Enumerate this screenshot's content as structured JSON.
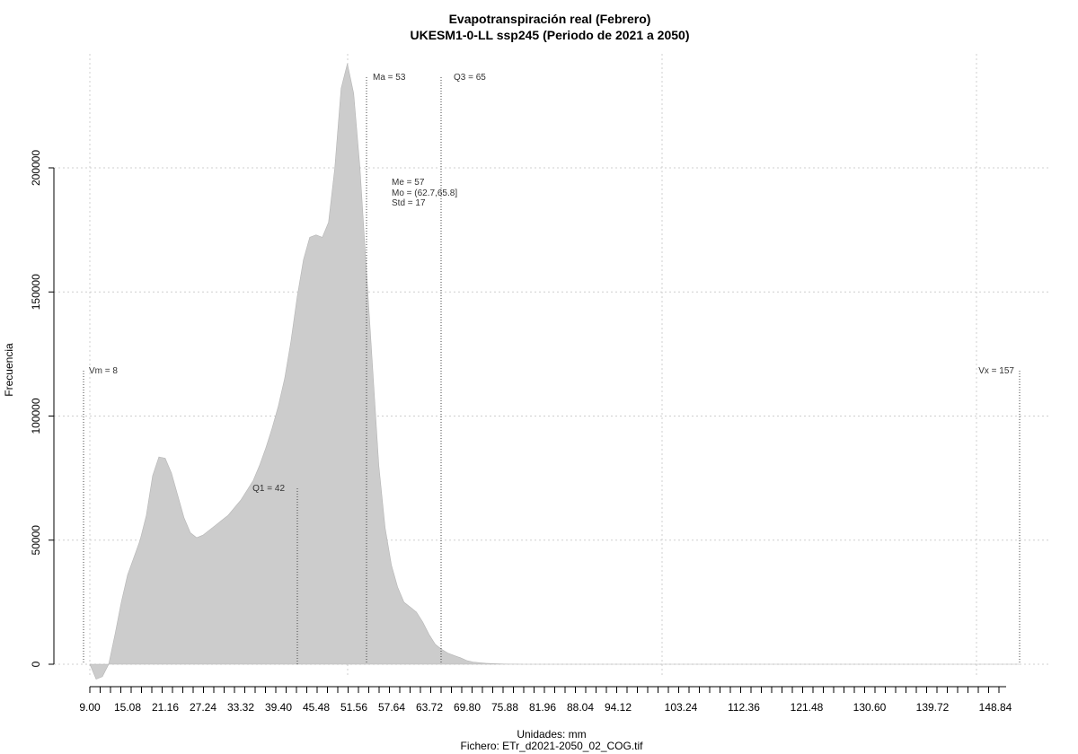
{
  "chart_data": {
    "type": "area",
    "title": "Evapotranspiración real (Febrero)",
    "subtitle": "UKESM1-0-LL ssp245 (Periodo de 2021 a 2050)",
    "xlabel": "Unidades: mm",
    "ylabel": "Frecuencia",
    "footer": "Fichero: ETr_d2021-2050_02_COG.tif",
    "xlim": [
      9,
      157
    ],
    "ylim": [
      0,
      240000
    ],
    "grid": true,
    "fill_color": "#cccccc",
    "x_ticks": [
      "9.00",
      "15.08",
      "21.16",
      "27.24",
      "33.32",
      "39.40",
      "45.48",
      "51.56",
      "57.64",
      "63.72",
      "69.80",
      "75.88",
      "81.96",
      "88.04",
      "94.12",
      "103.24",
      "112.36",
      "121.48",
      "130.60",
      "139.72",
      "148.84"
    ],
    "y_ticks": [
      "0",
      "50000",
      "100000",
      "150000",
      "200000"
    ],
    "series": [
      {
        "x": [
          9,
          10,
          11,
          12,
          13,
          14,
          15,
          16,
          17,
          18,
          19,
          20,
          21,
          22,
          23,
          24,
          25,
          26,
          27,
          28,
          29,
          30,
          31,
          32,
          33,
          34,
          35,
          36,
          37,
          38,
          39,
          40,
          41,
          42,
          43,
          44,
          45,
          46,
          47,
          48,
          49,
          50,
          51,
          52,
          53,
          54,
          55,
          56,
          57,
          58,
          59,
          60,
          61,
          62,
          63,
          64,
          65,
          66,
          67,
          68,
          69,
          70,
          71,
          72,
          73,
          74,
          75,
          76,
          77,
          78,
          79,
          80,
          81,
          82,
          83,
          84,
          85,
          86,
          87,
          88,
          90,
          92,
          94,
          96,
          98,
          100,
          102,
          104,
          106,
          110,
          115,
          120,
          130,
          140,
          150,
          157
        ],
        "y": [
          0,
          -6000,
          -5000,
          0,
          12000,
          25000,
          36000,
          43000,
          50000,
          60000,
          76000,
          83500,
          83000,
          77000,
          68000,
          59000,
          53000,
          51000,
          52000,
          54000,
          56000,
          58000,
          60000,
          63000,
          66000,
          70000,
          74000,
          80000,
          87000,
          95000,
          104000,
          115000,
          130000,
          148000,
          163000,
          172000,
          173000,
          172000,
          178000,
          200000,
          232000,
          242000,
          230000,
          200000,
          160000,
          120000,
          80000,
          55000,
          40000,
          31000,
          25000,
          23000,
          21000,
          17000,
          12000,
          8000,
          6000,
          4500,
          3500,
          2600,
          1500,
          900,
          600,
          400,
          250,
          150,
          80,
          40,
          20,
          5,
          0,
          0,
          0,
          0,
          0,
          0,
          0,
          0,
          0,
          0,
          0,
          0,
          0,
          0,
          0,
          0,
          0,
          0,
          0,
          0,
          0,
          0,
          0,
          0,
          0,
          0
        ],
        "x_is_relative": false
      }
    ],
    "annotations": [
      {
        "label": "Vm = 8",
        "x": 8
      },
      {
        "label": "Q1 = 42",
        "x": 42
      },
      {
        "label": "Ma = 53",
        "x": 53
      },
      {
        "label": "Q3 = 65",
        "x": 65
      },
      {
        "label": "Vx = 157",
        "x": 157
      }
    ],
    "stats": [
      "Me = 57",
      "Mo = (62.7,65.8]",
      "Std = 17"
    ]
  }
}
